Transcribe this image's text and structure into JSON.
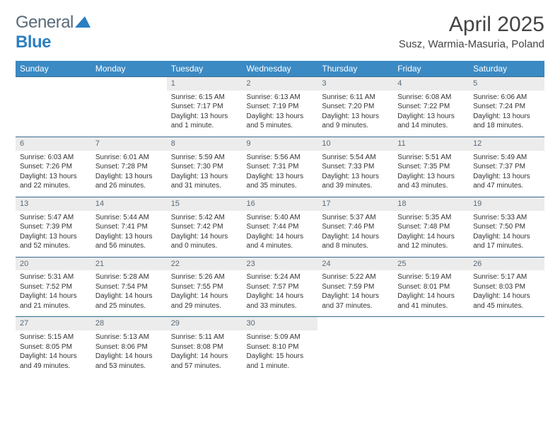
{
  "brand": {
    "part1": "General",
    "part2": "Blue"
  },
  "title": "April 2025",
  "location": "Susz, Warmia-Masuria, Poland",
  "colors": {
    "header_bg": "#3b8ac4",
    "header_text": "#ffffff",
    "daynum_bg": "#ececec",
    "daynum_text": "#5a6a78",
    "cell_border": "#3b6a8f",
    "body_text": "#333333",
    "brand_gray": "#5a6a78",
    "brand_blue": "#2d7fc0"
  },
  "weekdays": [
    "Sunday",
    "Monday",
    "Tuesday",
    "Wednesday",
    "Thursday",
    "Friday",
    "Saturday"
  ],
  "weeks": [
    [
      {
        "n": "",
        "sr": "",
        "ss": "",
        "dl": ""
      },
      {
        "n": "",
        "sr": "",
        "ss": "",
        "dl": ""
      },
      {
        "n": "1",
        "sr": "6:15 AM",
        "ss": "7:17 PM",
        "dl": "13 hours and 1 minute."
      },
      {
        "n": "2",
        "sr": "6:13 AM",
        "ss": "7:19 PM",
        "dl": "13 hours and 5 minutes."
      },
      {
        "n": "3",
        "sr": "6:11 AM",
        "ss": "7:20 PM",
        "dl": "13 hours and 9 minutes."
      },
      {
        "n": "4",
        "sr": "6:08 AM",
        "ss": "7:22 PM",
        "dl": "13 hours and 14 minutes."
      },
      {
        "n": "5",
        "sr": "6:06 AM",
        "ss": "7:24 PM",
        "dl": "13 hours and 18 minutes."
      }
    ],
    [
      {
        "n": "6",
        "sr": "6:03 AM",
        "ss": "7:26 PM",
        "dl": "13 hours and 22 minutes."
      },
      {
        "n": "7",
        "sr": "6:01 AM",
        "ss": "7:28 PM",
        "dl": "13 hours and 26 minutes."
      },
      {
        "n": "8",
        "sr": "5:59 AM",
        "ss": "7:30 PM",
        "dl": "13 hours and 31 minutes."
      },
      {
        "n": "9",
        "sr": "5:56 AM",
        "ss": "7:31 PM",
        "dl": "13 hours and 35 minutes."
      },
      {
        "n": "10",
        "sr": "5:54 AM",
        "ss": "7:33 PM",
        "dl": "13 hours and 39 minutes."
      },
      {
        "n": "11",
        "sr": "5:51 AM",
        "ss": "7:35 PM",
        "dl": "13 hours and 43 minutes."
      },
      {
        "n": "12",
        "sr": "5:49 AM",
        "ss": "7:37 PM",
        "dl": "13 hours and 47 minutes."
      }
    ],
    [
      {
        "n": "13",
        "sr": "5:47 AM",
        "ss": "7:39 PM",
        "dl": "13 hours and 52 minutes."
      },
      {
        "n": "14",
        "sr": "5:44 AM",
        "ss": "7:41 PM",
        "dl": "13 hours and 56 minutes."
      },
      {
        "n": "15",
        "sr": "5:42 AM",
        "ss": "7:42 PM",
        "dl": "14 hours and 0 minutes."
      },
      {
        "n": "16",
        "sr": "5:40 AM",
        "ss": "7:44 PM",
        "dl": "14 hours and 4 minutes."
      },
      {
        "n": "17",
        "sr": "5:37 AM",
        "ss": "7:46 PM",
        "dl": "14 hours and 8 minutes."
      },
      {
        "n": "18",
        "sr": "5:35 AM",
        "ss": "7:48 PM",
        "dl": "14 hours and 12 minutes."
      },
      {
        "n": "19",
        "sr": "5:33 AM",
        "ss": "7:50 PM",
        "dl": "14 hours and 17 minutes."
      }
    ],
    [
      {
        "n": "20",
        "sr": "5:31 AM",
        "ss": "7:52 PM",
        "dl": "14 hours and 21 minutes."
      },
      {
        "n": "21",
        "sr": "5:28 AM",
        "ss": "7:54 PM",
        "dl": "14 hours and 25 minutes."
      },
      {
        "n": "22",
        "sr": "5:26 AM",
        "ss": "7:55 PM",
        "dl": "14 hours and 29 minutes."
      },
      {
        "n": "23",
        "sr": "5:24 AM",
        "ss": "7:57 PM",
        "dl": "14 hours and 33 minutes."
      },
      {
        "n": "24",
        "sr": "5:22 AM",
        "ss": "7:59 PM",
        "dl": "14 hours and 37 minutes."
      },
      {
        "n": "25",
        "sr": "5:19 AM",
        "ss": "8:01 PM",
        "dl": "14 hours and 41 minutes."
      },
      {
        "n": "26",
        "sr": "5:17 AM",
        "ss": "8:03 PM",
        "dl": "14 hours and 45 minutes."
      }
    ],
    [
      {
        "n": "27",
        "sr": "5:15 AM",
        "ss": "8:05 PM",
        "dl": "14 hours and 49 minutes."
      },
      {
        "n": "28",
        "sr": "5:13 AM",
        "ss": "8:06 PM",
        "dl": "14 hours and 53 minutes."
      },
      {
        "n": "29",
        "sr": "5:11 AM",
        "ss": "8:08 PM",
        "dl": "14 hours and 57 minutes."
      },
      {
        "n": "30",
        "sr": "5:09 AM",
        "ss": "8:10 PM",
        "dl": "15 hours and 1 minute."
      },
      {
        "n": "",
        "sr": "",
        "ss": "",
        "dl": ""
      },
      {
        "n": "",
        "sr": "",
        "ss": "",
        "dl": ""
      },
      {
        "n": "",
        "sr": "",
        "ss": "",
        "dl": ""
      }
    ]
  ],
  "labels": {
    "sunrise": "Sunrise: ",
    "sunset": "Sunset: ",
    "daylight": "Daylight: "
  }
}
